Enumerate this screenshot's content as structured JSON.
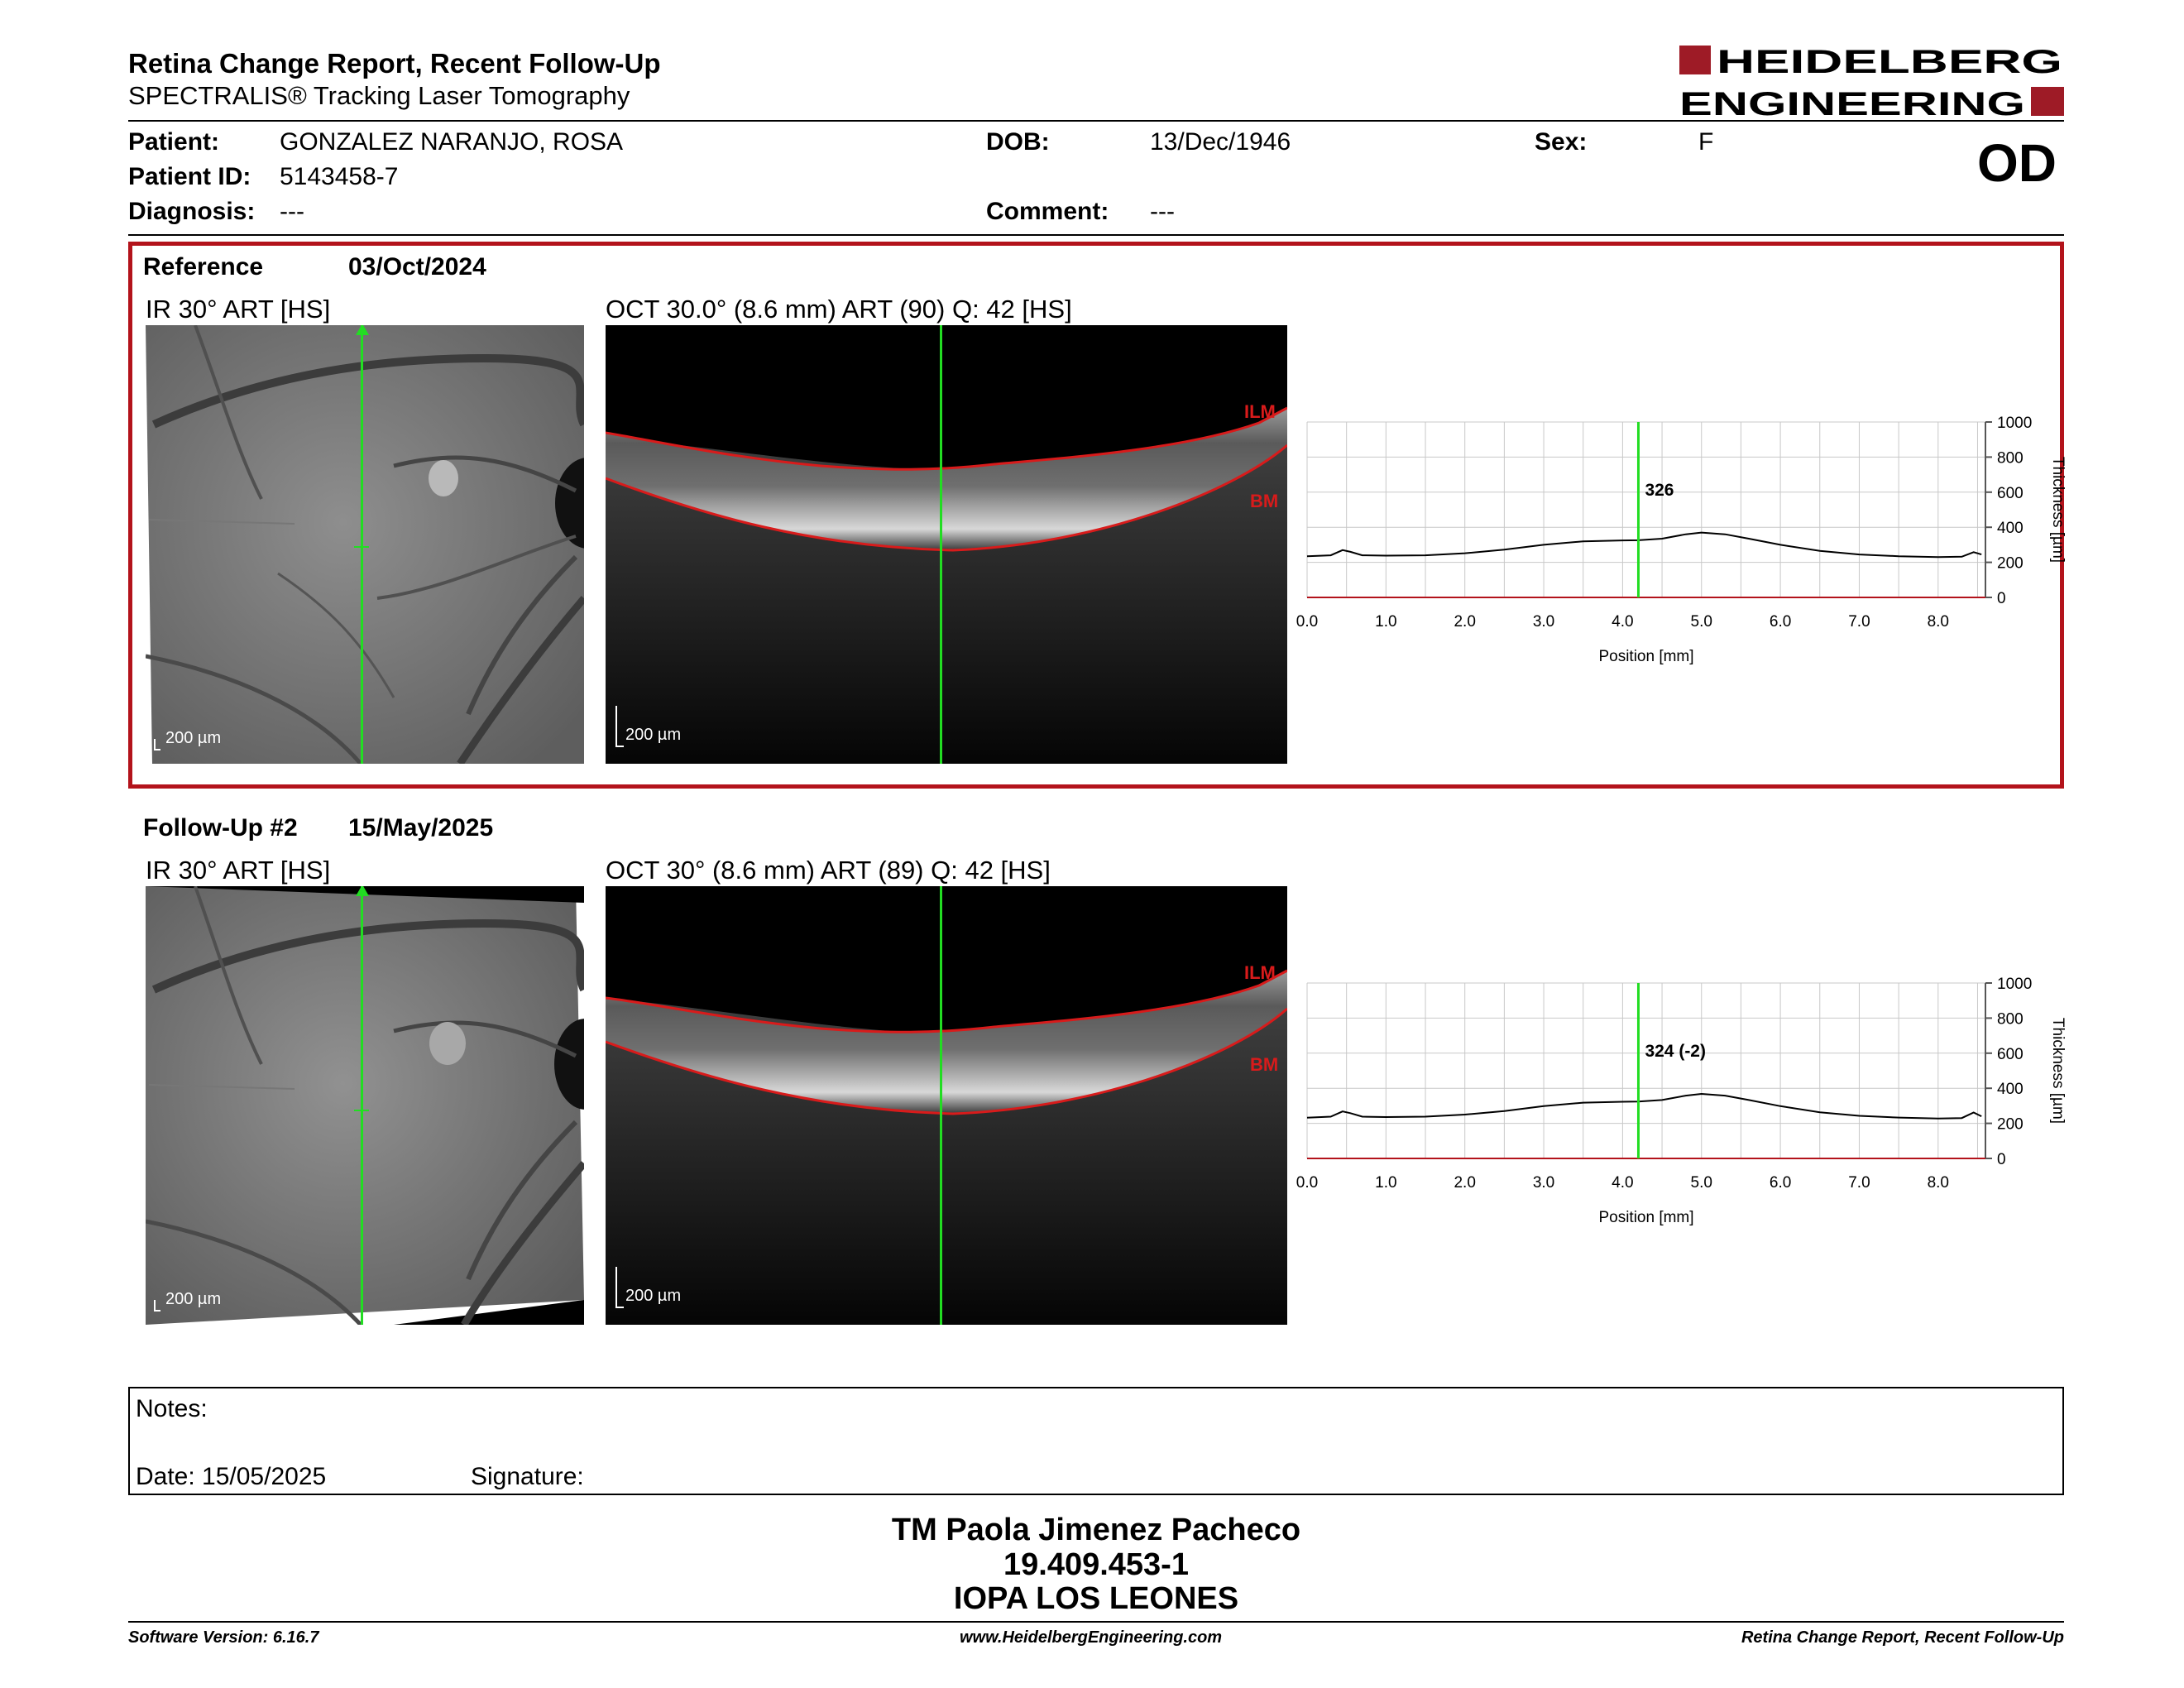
{
  "header": {
    "title": "Retina Change Report, Recent Follow-Up",
    "subtitle": "SPECTRALIS® Tracking Laser Tomography",
    "logo_line1": "HEIDELBERG",
    "logo_line2": "ENGINEERING",
    "eye": "OD"
  },
  "patient": {
    "patient_label": "Patient:",
    "patient_value": "GONZALEZ NARANJO, ROSA",
    "dob_label": "DOB:",
    "dob_value": "13/Dec/1946",
    "sex_label": "Sex:",
    "sex_value": "F",
    "id_label": "Patient ID:",
    "id_value": "5143458-7",
    "diagnosis_label": "Diagnosis:",
    "diagnosis_value": "---",
    "comment_label": "Comment:",
    "comment_value": "---"
  },
  "reference": {
    "label": "Reference",
    "date": "03/Oct/2024",
    "ir_caption": "IR 30° ART [HS]",
    "oct_caption": "OCT 30.0° (8.6 mm) ART (90) Q: 42 [HS]",
    "scale_ir": "200 µm",
    "scale_oct": "200 µm",
    "ilm": "ILM",
    "bm": "BM",
    "thickness_label": "326"
  },
  "followup": {
    "label": "Follow-Up #2",
    "date": "15/May/2025",
    "ir_caption": "IR 30° ART [HS]",
    "oct_caption": "OCT 30° (8.6 mm) ART (89) Q: 42 [HS]",
    "scale_ir": "200 µm",
    "scale_oct": "200 µm",
    "ilm": "ILM",
    "bm": "BM",
    "thickness_label": "324 (-2)"
  },
  "chart_data": [
    {
      "type": "line",
      "xlabel": "Position [mm]",
      "ylabel": "Thickness [µm]",
      "xlim": [
        0,
        8.6
      ],
      "ylim": [
        0,
        1000
      ],
      "x_ticks": [
        "0.0",
        "1.0",
        "2.0",
        "3.0",
        "4.0",
        "5.0",
        "6.0",
        "7.0",
        "8.0"
      ],
      "y_ticks": [
        "0",
        "200",
        "400",
        "600",
        "800",
        "1000"
      ],
      "grid": true,
      "marker_x": 4.2,
      "marker_label": "326",
      "series": [
        {
          "x": [
            0.0,
            0.3,
            0.45,
            0.55,
            0.7,
            1.0,
            1.5,
            2.0,
            2.5,
            3.0,
            3.5,
            4.0,
            4.2,
            4.5,
            4.8,
            5.0,
            5.3,
            5.6,
            6.0,
            6.5,
            7.0,
            7.5,
            8.0,
            8.3,
            8.45,
            8.55
          ],
          "values": [
            235,
            240,
            270,
            260,
            240,
            238,
            240,
            252,
            272,
            300,
            320,
            325,
            326,
            335,
            360,
            370,
            360,
            335,
            300,
            265,
            245,
            235,
            230,
            232,
            258,
            245
          ]
        }
      ]
    },
    {
      "type": "line",
      "xlabel": "Position [mm]",
      "ylabel": "Thickness [µm]",
      "xlim": [
        0,
        8.6
      ],
      "ylim": [
        0,
        1000
      ],
      "x_ticks": [
        "0.0",
        "1.0",
        "2.0",
        "3.0",
        "4.0",
        "5.0",
        "6.0",
        "7.0",
        "8.0"
      ],
      "y_ticks": [
        "0",
        "200",
        "400",
        "600",
        "800",
        "1000"
      ],
      "grid": true,
      "marker_x": 4.2,
      "marker_label": "324 (-2)",
      "series": [
        {
          "x": [
            0.0,
            0.3,
            0.45,
            0.55,
            0.7,
            1.0,
            1.5,
            2.0,
            2.5,
            3.0,
            3.5,
            4.0,
            4.2,
            4.5,
            4.8,
            5.0,
            5.3,
            5.6,
            6.0,
            6.5,
            7.0,
            7.5,
            8.0,
            8.3,
            8.45,
            8.55
          ],
          "values": [
            232,
            238,
            268,
            258,
            238,
            236,
            238,
            250,
            270,
            298,
            318,
            323,
            324,
            333,
            358,
            368,
            358,
            333,
            298,
            263,
            243,
            233,
            228,
            230,
            262,
            240
          ]
        }
      ]
    }
  ],
  "notes": {
    "notes_label": "Notes:",
    "date_label": "Date: 15/05/2025",
    "signature_label": "Signature:"
  },
  "signature": {
    "name": "TM Paola Jimenez Pacheco",
    "id": "19.409.453-1",
    "org": "IOPA LOS LEONES"
  },
  "footer": {
    "software": "Software Version: 6.16.7",
    "url": "www.HeidelbergEngineering.com",
    "report": "Retina Change Report, Recent Follow-Up"
  },
  "colors": {
    "accent_red": "#b3131b",
    "scan_green": "#22dd22",
    "layer_red": "#d81b1b"
  }
}
